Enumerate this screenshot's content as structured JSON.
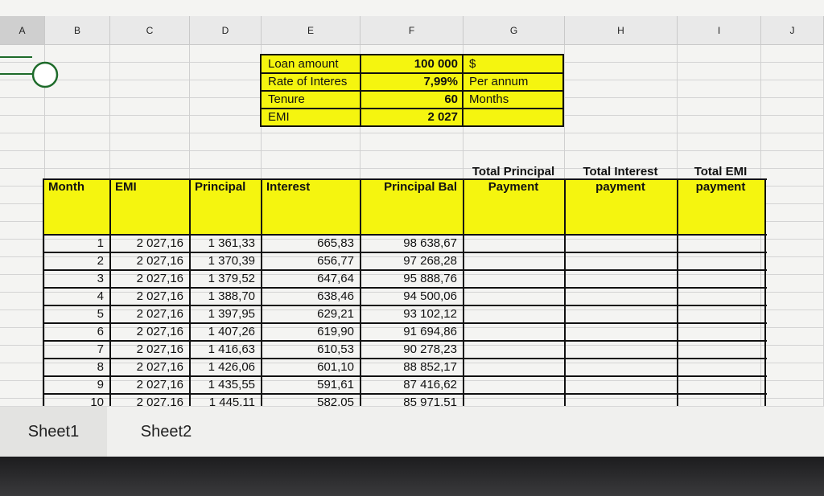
{
  "columns": [
    "A",
    "B",
    "C",
    "D",
    "E",
    "F",
    "G",
    "H",
    "I",
    "J"
  ],
  "loan_box": {
    "rows": [
      {
        "label": "Loan amount",
        "value": "100 000",
        "unit": "$"
      },
      {
        "label": "Rate of Interes",
        "value": "7,99%",
        "unit": "Per annum"
      },
      {
        "label": "Tenure",
        "value": "60",
        "unit": "Months"
      },
      {
        "label": "EMI",
        "value": "2 027",
        "unit": ""
      }
    ]
  },
  "table": {
    "headers": {
      "month": "Month",
      "emi": "EMI",
      "principal": "Principal",
      "interest": "Interest",
      "principal_bal": "Principal Bal",
      "total_principal": "Total Principal Payment",
      "total_interest": "Total Interest payment",
      "total_emi": "Total EMI payment"
    },
    "rows": [
      [
        "1",
        "2 027,16",
        "1 361,33",
        "665,83",
        "98 638,67"
      ],
      [
        "2",
        "2 027,16",
        "1 370,39",
        "656,77",
        "97 268,28"
      ],
      [
        "3",
        "2 027,16",
        "1 379,52",
        "647,64",
        "95 888,76"
      ],
      [
        "4",
        "2 027,16",
        "1 388,70",
        "638,46",
        "94 500,06"
      ],
      [
        "5",
        "2 027,16",
        "1 397,95",
        "629,21",
        "93 102,12"
      ],
      [
        "6",
        "2 027,16",
        "1 407,26",
        "619,90",
        "91 694,86"
      ],
      [
        "7",
        "2 027,16",
        "1 416,63",
        "610,53",
        "90 278,23"
      ],
      [
        "8",
        "2 027,16",
        "1 426,06",
        "601,10",
        "88 852,17"
      ],
      [
        "9",
        "2 027,16",
        "1 435,55",
        "591,61",
        "87 416,62"
      ],
      [
        "10",
        "2 027,16",
        "1 445,11",
        "582,05",
        "85 971,51"
      ]
    ]
  },
  "sheet_tabs": [
    "Sheet1",
    "Sheet2"
  ],
  "colors": {
    "highlight": "#f5f50f",
    "green_shape": "#1e6b2a"
  }
}
